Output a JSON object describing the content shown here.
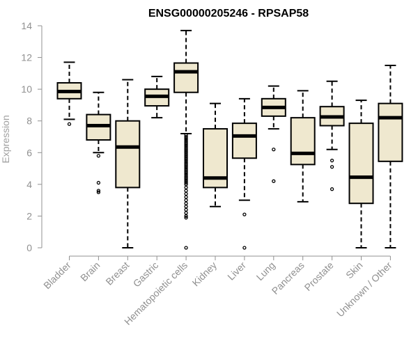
{
  "chart_data": {
    "type": "boxplot",
    "title": "ENSG00000205246 - RPSAP58",
    "xlabel": "",
    "ylabel": "Expression",
    "ylim": [
      0,
      14
    ],
    "yticks": [
      "0",
      "2",
      "4",
      "6",
      "8",
      "10",
      "12",
      "14"
    ],
    "box_color": "#efe8cf",
    "outline_color": "#000000",
    "axis_color": "#909090",
    "categories": [
      "Bladder",
      "Brain",
      "Breast",
      "Gastric",
      "Hematopoietic cells",
      "Kidney",
      "Liver",
      "Lung",
      "Pancreas",
      "Prostate",
      "Skin",
      "Unknown / Other"
    ],
    "boxes": [
      {
        "label": "Bladder",
        "min": 8.1,
        "q1": 9.4,
        "median": 9.85,
        "q3": 10.4,
        "max": 11.7,
        "outliers": [
          7.8
        ]
      },
      {
        "label": "Brain",
        "min": 6.0,
        "q1": 6.8,
        "median": 7.7,
        "q3": 8.4,
        "max": 9.8,
        "outliers": [
          5.8,
          4.1,
          3.6,
          3.5
        ]
      },
      {
        "label": "Breast",
        "min": 0.0,
        "q1": 3.8,
        "median": 6.35,
        "q3": 8.0,
        "max": 10.6,
        "outliers": []
      },
      {
        "label": "Gastric",
        "min": 8.2,
        "q1": 8.95,
        "median": 9.55,
        "q3": 10.0,
        "max": 10.8,
        "outliers": []
      },
      {
        "label": "Hematopoietic cells",
        "min": 7.2,
        "q1": 9.8,
        "median": 11.1,
        "q3": 11.65,
        "max": 13.7,
        "outliers": [
          7.1,
          7.0,
          6.9,
          6.8,
          6.7,
          6.6,
          6.5,
          6.4,
          6.3,
          6.2,
          6.1,
          6.0,
          5.9,
          5.8,
          5.7,
          5.6,
          5.5,
          5.4,
          5.3,
          5.2,
          5.1,
          5.0,
          4.9,
          4.8,
          4.7,
          4.6,
          4.5,
          4.4,
          4.3,
          4.2,
          4.1,
          4.0,
          3.8,
          3.6,
          3.4,
          3.2,
          3.0,
          2.8,
          2.6,
          2.4,
          2.2,
          2.0,
          1.9,
          0.0
        ]
      },
      {
        "label": "Kidney",
        "min": 2.6,
        "q1": 3.8,
        "median": 4.4,
        "q3": 7.5,
        "max": 9.1,
        "outliers": []
      },
      {
        "label": "Liver",
        "min": 3.0,
        "q1": 5.65,
        "median": 7.05,
        "q3": 7.85,
        "max": 9.4,
        "outliers": [
          2.1,
          0.0
        ]
      },
      {
        "label": "Lung",
        "min": 7.5,
        "q1": 8.3,
        "median": 8.85,
        "q3": 9.4,
        "max": 10.2,
        "outliers": [
          6.2,
          4.2
        ]
      },
      {
        "label": "Pancreas",
        "min": 2.9,
        "q1": 5.25,
        "median": 5.95,
        "q3": 8.2,
        "max": 9.9,
        "outliers": []
      },
      {
        "label": "Prostate",
        "min": 6.2,
        "q1": 7.7,
        "median": 8.25,
        "q3": 8.9,
        "max": 10.5,
        "outliers": [
          5.5,
          5.1,
          3.7
        ]
      },
      {
        "label": "Skin",
        "min": 0.0,
        "q1": 2.8,
        "median": 4.45,
        "q3": 7.85,
        "max": 9.3,
        "outliers": []
      },
      {
        "label": "Unknown / Other",
        "min": 0.0,
        "q1": 5.45,
        "median": 8.2,
        "q3": 9.1,
        "max": 11.5,
        "outliers": []
      }
    ]
  }
}
